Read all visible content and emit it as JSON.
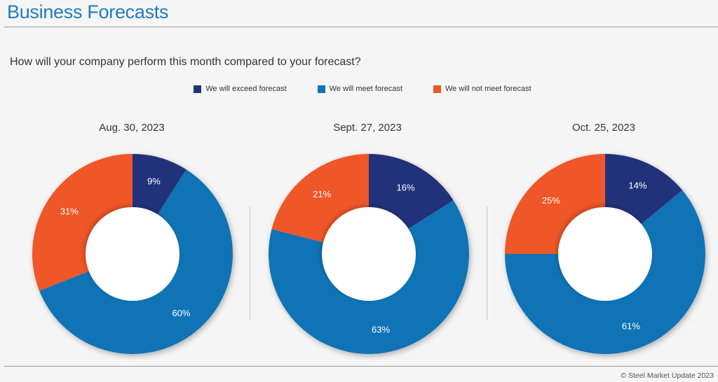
{
  "header": {
    "title": "Business Forecasts"
  },
  "question": "How will your company perform this month compared to your forecast?",
  "colors": {
    "exceed": "#22327a",
    "meet": "#0f73b6",
    "not_meet": "#ef5628"
  },
  "legend": [
    {
      "label": "We will exceed forecast",
      "color": "#22327a"
    },
    {
      "label": "We will meet forecast",
      "color": "#0f73b6"
    },
    {
      "label": "We will not meet forecast",
      "color": "#ef5628"
    }
  ],
  "chart_data": [
    {
      "type": "pie",
      "title": "Aug. 30, 2023",
      "categories": [
        "We will exceed forecast",
        "We will meet forecast",
        "We will not meet forecast"
      ],
      "values": [
        9,
        60,
        31
      ],
      "labels": [
        "9%",
        "60%",
        "31%"
      ]
    },
    {
      "type": "pie",
      "title": "Sept. 27, 2023",
      "categories": [
        "We will exceed forecast",
        "We will meet forecast",
        "We will not meet forecast"
      ],
      "values": [
        16,
        63,
        21
      ],
      "labels": [
        "16%",
        "63%",
        "21%"
      ]
    },
    {
      "type": "pie",
      "title": "Oct. 25, 2023",
      "categories": [
        "We will exceed forecast",
        "We will meet forecast",
        "We will not meet forecast"
      ],
      "values": [
        14,
        61,
        25
      ],
      "labels": [
        "14%",
        "61%",
        "25%"
      ]
    }
  ],
  "footer": {
    "copyright": "© Steel Market Update 2023"
  }
}
